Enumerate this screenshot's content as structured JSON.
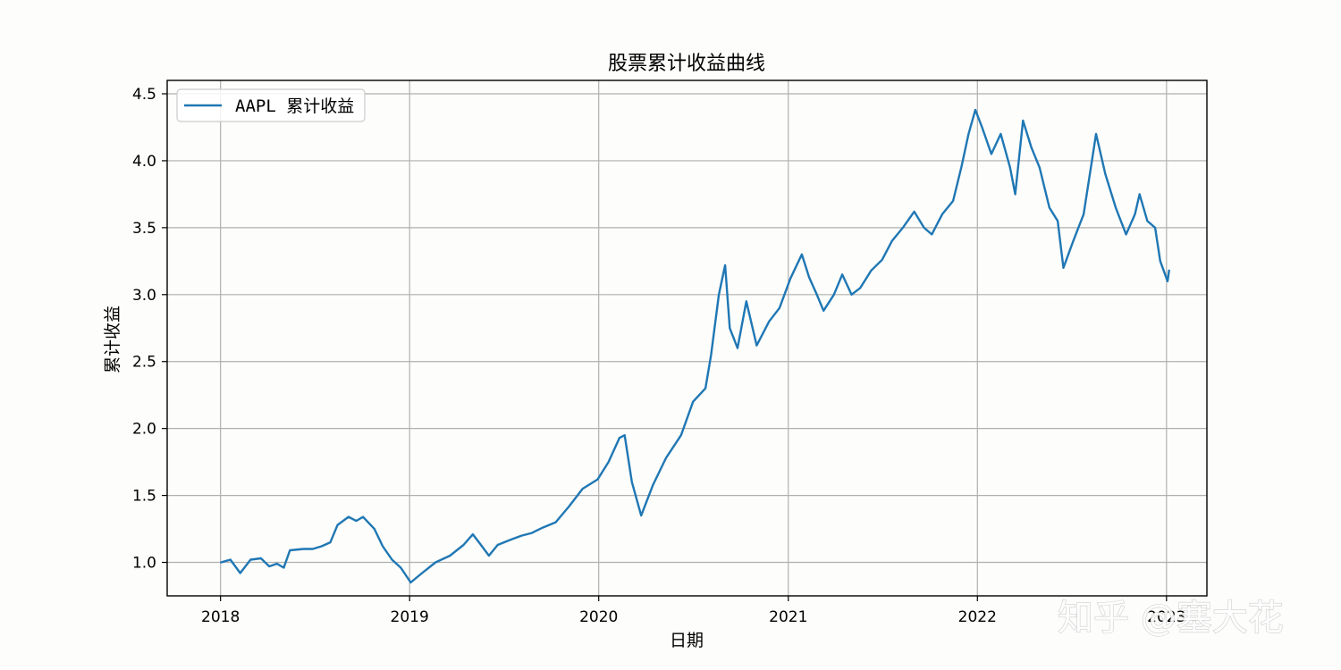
{
  "chart_data": {
    "type": "line",
    "title": "股票累计收益曲线",
    "xlabel": "日期",
    "ylabel": "累计收益",
    "xlim": [
      "2017-09-20",
      "2023-03-20"
    ],
    "ylim": [
      0.75,
      4.6
    ],
    "x_ticks": [
      "2018",
      "2019",
      "2020",
      "2021",
      "2022",
      "2023"
    ],
    "y_ticks": [
      "1.0",
      "1.5",
      "2.0",
      "2.5",
      "3.0",
      "3.5",
      "4.0",
      "4.5"
    ],
    "grid": true,
    "legend_position": "upper-left",
    "series": [
      {
        "name": "AAPL 累计收益",
        "color": "#1f77b4",
        "points": [
          [
            "2018-01-02",
            1.0
          ],
          [
            "2018-01-20",
            1.02
          ],
          [
            "2018-02-08",
            0.92
          ],
          [
            "2018-02-28",
            1.02
          ],
          [
            "2018-03-20",
            1.03
          ],
          [
            "2018-04-05",
            0.97
          ],
          [
            "2018-04-20",
            0.99
          ],
          [
            "2018-05-03",
            0.96
          ],
          [
            "2018-05-15",
            1.09
          ],
          [
            "2018-06-10",
            1.1
          ],
          [
            "2018-06-28",
            1.1
          ],
          [
            "2018-07-15",
            1.12
          ],
          [
            "2018-08-01",
            1.15
          ],
          [
            "2018-08-15",
            1.28
          ],
          [
            "2018-09-05",
            1.34
          ],
          [
            "2018-09-20",
            1.31
          ],
          [
            "2018-10-03",
            1.34
          ],
          [
            "2018-10-25",
            1.25
          ],
          [
            "2018-11-10",
            1.12
          ],
          [
            "2018-11-28",
            1.02
          ],
          [
            "2018-12-15",
            0.96
          ],
          [
            "2019-01-03",
            0.85
          ],
          [
            "2019-01-25",
            0.92
          ],
          [
            "2019-02-20",
            1.0
          ],
          [
            "2019-03-20",
            1.05
          ],
          [
            "2019-04-15",
            1.13
          ],
          [
            "2019-05-03",
            1.21
          ],
          [
            "2019-05-15",
            1.15
          ],
          [
            "2019-06-03",
            1.05
          ],
          [
            "2019-06-20",
            1.13
          ],
          [
            "2019-07-15",
            1.17
          ],
          [
            "2019-08-05",
            1.2
          ],
          [
            "2019-08-25",
            1.22
          ],
          [
            "2019-09-15",
            1.26
          ],
          [
            "2019-10-10",
            1.3
          ],
          [
            "2019-11-05",
            1.42
          ],
          [
            "2019-12-01",
            1.55
          ],
          [
            "2019-12-30",
            1.62
          ],
          [
            "2020-01-20",
            1.75
          ],
          [
            "2020-02-10",
            1.93
          ],
          [
            "2020-02-20",
            1.95
          ],
          [
            "2020-03-05",
            1.6
          ],
          [
            "2020-03-23",
            1.35
          ],
          [
            "2020-04-15",
            1.58
          ],
          [
            "2020-05-10",
            1.78
          ],
          [
            "2020-06-08",
            1.95
          ],
          [
            "2020-07-01",
            2.2
          ],
          [
            "2020-07-25",
            2.3
          ],
          [
            "2020-08-05",
            2.55
          ],
          [
            "2020-08-20",
            3.0
          ],
          [
            "2020-09-01",
            3.22
          ],
          [
            "2020-09-10",
            2.75
          ],
          [
            "2020-09-25",
            2.6
          ],
          [
            "2020-10-12",
            2.95
          ],
          [
            "2020-11-01",
            2.62
          ],
          [
            "2020-11-25",
            2.8
          ],
          [
            "2020-12-15",
            2.9
          ],
          [
            "2021-01-05",
            3.12
          ],
          [
            "2021-01-27",
            3.3
          ],
          [
            "2021-02-10",
            3.13
          ],
          [
            "2021-02-25",
            3.0
          ],
          [
            "2021-03-10",
            2.88
          ],
          [
            "2021-03-30",
            3.0
          ],
          [
            "2021-04-15",
            3.15
          ],
          [
            "2021-05-03",
            3.0
          ],
          [
            "2021-05-20",
            3.05
          ],
          [
            "2021-06-10",
            3.18
          ],
          [
            "2021-07-01",
            3.26
          ],
          [
            "2021-07-20",
            3.4
          ],
          [
            "2021-08-10",
            3.5
          ],
          [
            "2021-09-01",
            3.62
          ],
          [
            "2021-09-20",
            3.5
          ],
          [
            "2021-10-05",
            3.45
          ],
          [
            "2021-10-25",
            3.6
          ],
          [
            "2021-11-15",
            3.7
          ],
          [
            "2021-12-01",
            3.95
          ],
          [
            "2021-12-15",
            4.2
          ],
          [
            "2021-12-28",
            4.38
          ],
          [
            "2022-01-10",
            4.25
          ],
          [
            "2022-01-28",
            4.05
          ],
          [
            "2022-02-15",
            4.2
          ],
          [
            "2022-03-05",
            3.95
          ],
          [
            "2022-03-15",
            3.75
          ],
          [
            "2022-03-30",
            4.3
          ],
          [
            "2022-04-15",
            4.1
          ],
          [
            "2022-05-01",
            3.95
          ],
          [
            "2022-05-20",
            3.65
          ],
          [
            "2022-06-05",
            3.55
          ],
          [
            "2022-06-16",
            3.2
          ],
          [
            "2022-07-05",
            3.4
          ],
          [
            "2022-07-25",
            3.6
          ],
          [
            "2022-08-10",
            4.0
          ],
          [
            "2022-08-18",
            4.2
          ],
          [
            "2022-09-05",
            3.9
          ],
          [
            "2022-09-25",
            3.65
          ],
          [
            "2022-10-15",
            3.45
          ],
          [
            "2022-11-01",
            3.6
          ],
          [
            "2022-11-10",
            3.75
          ],
          [
            "2022-11-25",
            3.55
          ],
          [
            "2022-12-10",
            3.5
          ],
          [
            "2022-12-20",
            3.25
          ],
          [
            "2023-01-03",
            3.1
          ],
          [
            "2023-01-06",
            3.18
          ]
        ]
      }
    ]
  },
  "watermark": "知乎 @塞大花"
}
